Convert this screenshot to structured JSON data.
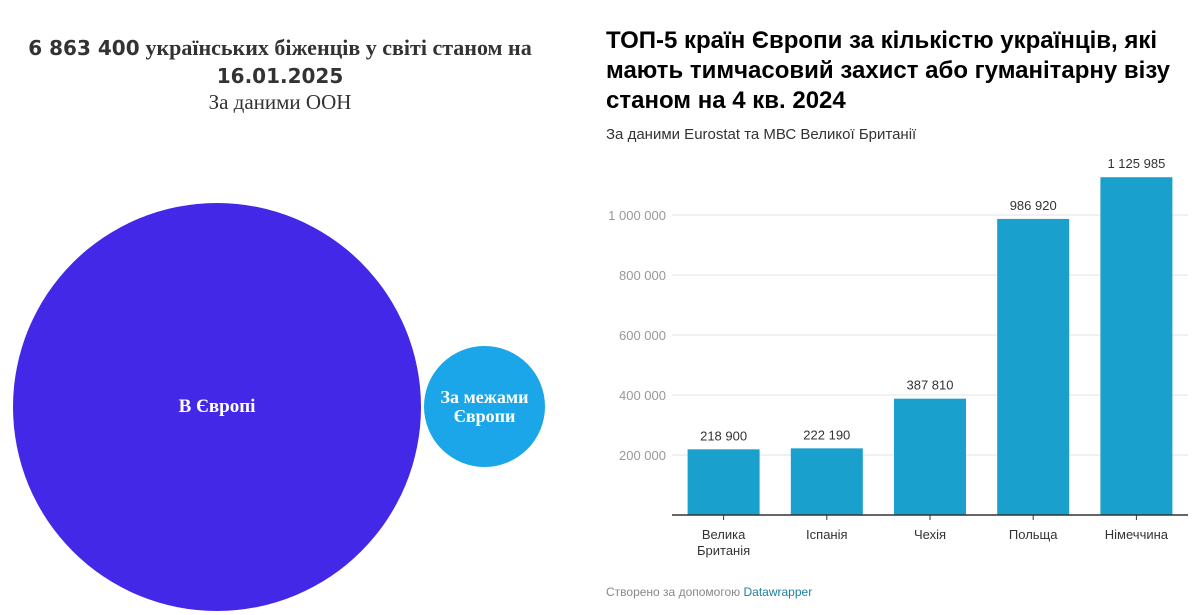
{
  "left": {
    "title_number": "6 863 400",
    "title_text": "українських біженців у світі станом на",
    "title_date": "16.01.2025",
    "source": "За даними ООН",
    "bubbles": [
      {
        "label": "В Європі",
        "color": "#4328e7"
      },
      {
        "label": "За межами Європи",
        "color": "#1aa6e8"
      }
    ]
  },
  "right": {
    "title": "ТОП-5 країн Європи за кількістю українців, які мають тимчасовий захист або гуманітарну візу станом на 4 кв. 2024",
    "subtitle": "За даними Eurostat та МВС Великої Британії",
    "footer_text": "Створено за допомогою",
    "footer_link": "Datawrapper"
  },
  "chart_data": {
    "type": "bar",
    "categories": [
      "Велика Британія",
      "Іспанія",
      "Чехія",
      "Польща",
      "Німеччина"
    ],
    "values": [
      218900,
      222190,
      387810,
      986920,
      1125985
    ],
    "value_labels": [
      "218 900",
      "222 190",
      "387 810",
      "986 920",
      "1 125 985"
    ],
    "yticks": [
      200000,
      400000,
      600000,
      800000,
      1000000
    ],
    "ytick_labels": [
      "200 000",
      "400 000",
      "600 000",
      "800 000",
      "1 000 000"
    ],
    "ylim": [
      0,
      1200000
    ],
    "grid": true,
    "bar_color": "#1aa0cd"
  }
}
